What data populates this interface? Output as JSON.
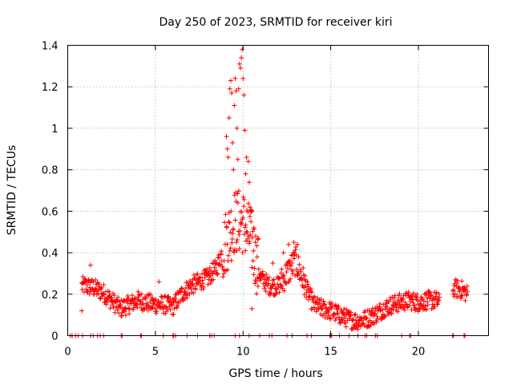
{
  "chart_data": {
    "type": "scatter",
    "title": "Day 250 of 2023, SRMTID for receiver kiri",
    "xlabel": "GPS time / hours",
    "ylabel": "SRMTID / TECUs",
    "xlim": [
      0,
      24
    ],
    "ylim": [
      0,
      1.4
    ],
    "xticks": [
      0,
      5,
      10,
      15,
      20
    ],
    "yticks": [
      0,
      0.2,
      0.4,
      0.6,
      0.8,
      1,
      1.2,
      1.4
    ],
    "ytick_labels": [
      "0",
      "0.2",
      "0.4",
      "0.6",
      "0.8",
      "1",
      "1.2",
      "1.4"
    ],
    "grid": true,
    "marker": "+",
    "series": [
      {
        "name": "SRMTID",
        "color": "#ff0000",
        "profile": [
          [
            0.8,
            0.24
          ],
          [
            1.0,
            0.24
          ],
          [
            1.5,
            0.23
          ],
          [
            2.0,
            0.21
          ],
          [
            2.5,
            0.17
          ],
          [
            3.0,
            0.13
          ],
          [
            3.5,
            0.15
          ],
          [
            4.0,
            0.17
          ],
          [
            4.5,
            0.16
          ],
          [
            5.0,
            0.15
          ],
          [
            5.5,
            0.15
          ],
          [
            6.0,
            0.14
          ],
          [
            6.5,
            0.2
          ],
          [
            7.0,
            0.24
          ],
          [
            7.5,
            0.26
          ],
          [
            8.0,
            0.28
          ],
          [
            8.5,
            0.33
          ],
          [
            9.0,
            0.45
          ],
          [
            9.5,
            0.55
          ],
          [
            10.0,
            0.55
          ],
          [
            10.5,
            0.45
          ],
          [
            11.0,
            0.28
          ],
          [
            11.5,
            0.24
          ],
          [
            12.0,
            0.24
          ],
          [
            12.5,
            0.3
          ],
          [
            13.0,
            0.36
          ],
          [
            13.5,
            0.25
          ],
          [
            14.0,
            0.15
          ],
          [
            14.5,
            0.13
          ],
          [
            15.0,
            0.12
          ],
          [
            15.5,
            0.1
          ],
          [
            16.0,
            0.08
          ],
          [
            16.5,
            0.07
          ],
          [
            17.0,
            0.08
          ],
          [
            17.5,
            0.1
          ],
          [
            18.0,
            0.13
          ],
          [
            18.5,
            0.15
          ],
          [
            19.0,
            0.16
          ],
          [
            19.5,
            0.17
          ],
          [
            20.0,
            0.16
          ],
          [
            20.5,
            0.17
          ],
          [
            21.0,
            0.17
          ],
          [
            21.5,
            0.14
          ],
          [
            22.0,
            0.23
          ],
          [
            22.5,
            0.22
          ],
          [
            22.8,
            0.2
          ]
        ],
        "gaps": [
          [
            21.2,
            21.95
          ]
        ],
        "spike_points": [
          [
            9.05,
            0.96
          ],
          [
            9.1,
            0.9
          ],
          [
            9.15,
            0.86
          ],
          [
            9.2,
            1.05
          ],
          [
            9.25,
            1.19
          ],
          [
            9.3,
            1.23
          ],
          [
            9.35,
            1.17
          ],
          [
            9.4,
            0.93
          ],
          [
            9.45,
            0.8
          ],
          [
            9.5,
            1.11
          ],
          [
            9.55,
            1.24
          ],
          [
            9.6,
            1.18
          ],
          [
            9.65,
            1.0
          ],
          [
            9.7,
            0.85
          ],
          [
            9.75,
            1.19
          ],
          [
            9.8,
            1.31
          ],
          [
            9.85,
            1.29
          ],
          [
            9.9,
            1.34
          ],
          [
            9.95,
            1.38
          ],
          [
            10.0,
            1.24
          ],
          [
            10.05,
            1.16
          ],
          [
            10.1,
            0.99
          ],
          [
            10.15,
            0.78
          ],
          [
            10.2,
            0.86
          ],
          [
            10.3,
            0.84
          ],
          [
            10.35,
            0.74
          ],
          [
            10.4,
            0.62
          ],
          [
            10.45,
            0.55
          ],
          [
            10.5,
            0.6
          ],
          [
            10.6,
            0.52
          ],
          [
            10.7,
            0.45
          ],
          [
            10.8,
            0.38
          ],
          [
            10.9,
            0.32
          ],
          [
            11.0,
            0.3
          ],
          [
            12.9,
            0.45
          ],
          [
            13.1,
            0.44
          ],
          [
            12.6,
            0.44
          ],
          [
            12.3,
            0.4
          ],
          [
            11.7,
            0.35
          ],
          [
            10.5,
            0.13
          ],
          [
            0.8,
            0.12
          ],
          [
            1.3,
            0.34
          ],
          [
            5.2,
            0.26
          ]
        ],
        "zero_points": [
          0.15,
          0.25,
          0.45,
          0.6,
          0.85,
          1.3,
          1.45,
          1.7,
          1.85,
          2.05,
          3.05,
          3.1,
          4.15,
          4.2,
          5.45,
          6.0,
          6.05,
          6.15,
          6.8,
          7.4,
          8.1,
          8.2,
          8.35,
          9.55,
          9.8,
          10.35,
          10.95,
          11.5,
          11.65,
          12.5,
          12.8,
          13.65,
          13.9,
          14.95,
          15.0,
          15.05,
          15.5,
          16.05,
          16.55,
          16.95,
          17.05,
          17.55,
          17.65,
          19.05,
          19.5,
          19.55,
          21.95,
          22.0,
          22.6,
          22.65
        ]
      }
    ]
  }
}
